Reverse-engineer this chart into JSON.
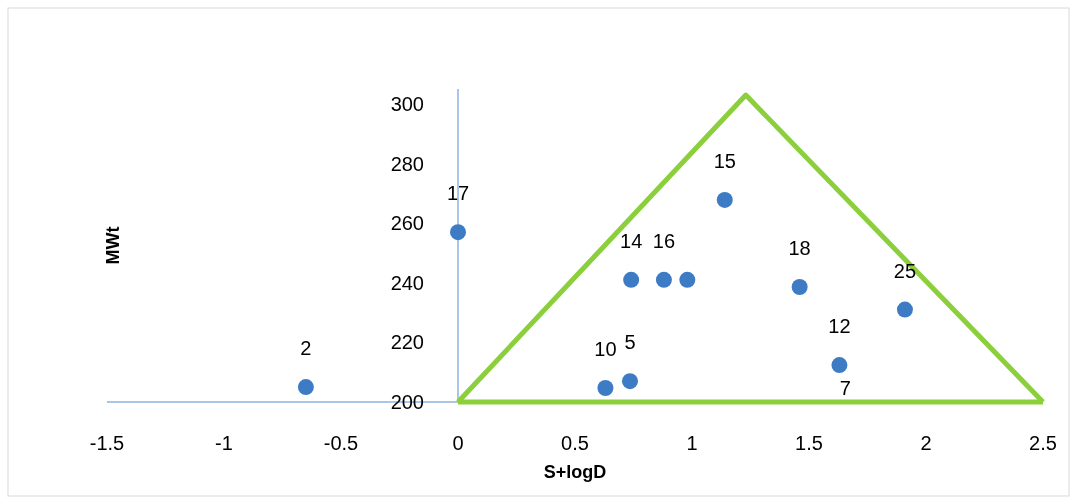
{
  "chart_data": {
    "type": "scatter",
    "xlabel": "S+logD",
    "ylabel": "MWt",
    "xlim": [
      -1.5,
      2.5
    ],
    "xticks": [
      -1.5,
      -1,
      -0.5,
      0,
      0.5,
      1,
      1.5,
      2,
      2.5
    ],
    "ylim": [
      200,
      305
    ],
    "yticks": [
      200,
      220,
      240,
      260,
      280,
      300
    ],
    "grid": false,
    "marker": "circle",
    "series": [
      {
        "color": "#3d7cc4",
        "x": [
          -0.65,
          0,
          0.63,
          0.735,
          0.74,
          0.88,
          0.98,
          1.14,
          1.46,
          1.91,
          1.63
        ],
        "values": [
          205,
          257,
          204.7,
          207,
          241,
          241,
          241,
          267.8,
          238.6,
          231,
          212.4
        ]
      },
      {
        "type": "line",
        "marker": "none",
        "color": "#8ccf3c",
        "x": [
          0,
          1.23,
          2.5
        ],
        "values": [
          200,
          303,
          200
        ]
      },
      {
        "type": "line",
        "marker": "none",
        "color": "#8ccf3c",
        "x": [
          0,
          2.5
        ],
        "values": [
          200,
          200
        ]
      }
    ],
    "annotations": [
      {
        "text": "2",
        "x": -0.65,
        "y": 205
      },
      {
        "text": "17",
        "x": 0,
        "y": 257
      },
      {
        "text": "10",
        "x": 0.63,
        "y": 204.7
      },
      {
        "text": "5",
        "x": 0.735,
        "y": 207
      },
      {
        "text": "14",
        "x": 0.74,
        "y": 241
      },
      {
        "text": "16",
        "x": 0.88,
        "y": 241
      },
      {
        "text": "15",
        "x": 1.14,
        "y": 267.8
      },
      {
        "text": "18",
        "x": 1.46,
        "y": 238.6
      },
      {
        "text": "25",
        "x": 1.91,
        "y": 231
      },
      {
        "text": "12",
        "x": 1.63,
        "y": 212.4
      },
      {
        "text": "7",
        "x": 1.63,
        "y": 212.4
      }
    ]
  }
}
